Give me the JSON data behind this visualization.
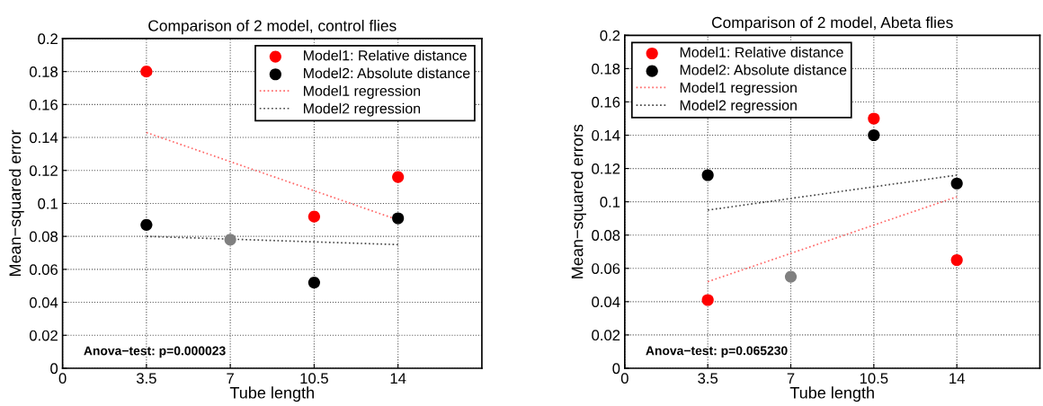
{
  "chart_data": [
    {
      "type": "scatter",
      "title": "Comparison of 2 model, control flies",
      "xlabel": "Tube length",
      "ylabel": "Mean−squared error",
      "xlim": [
        0,
        17.5
      ],
      "xticks": [
        0,
        3.5,
        7,
        10.5,
        14
      ],
      "ylim": [
        0,
        0.2
      ],
      "yticks": [
        0,
        0.02,
        0.04,
        0.06,
        0.08,
        0.1,
        0.12,
        0.14,
        0.16,
        0.18,
        0.2
      ],
      "grid": true,
      "legend": "top right",
      "marker": "circle",
      "annotations": [
        "Anova−test: p=0.000023"
      ],
      "series": [
        {
          "name": "Model1: Relative distance",
          "color": "#ff0000",
          "x": [
            3.5,
            10.5,
            14
          ],
          "values": [
            0.18,
            0.092,
            0.116
          ]
        },
        {
          "name": "Model2: Absolute distance",
          "color": "#000000",
          "x": [
            3.5,
            10.5,
            14
          ],
          "values": [
            0.087,
            0.052,
            0.091
          ]
        },
        {
          "name": "Model1 regression",
          "type": "line",
          "line_style": "dotted",
          "marker": "none",
          "color": "#ff6666",
          "x": [
            3.5,
            14
          ],
          "values": [
            0.143,
            0.09
          ]
        },
        {
          "name": "Model2 regression",
          "type": "line",
          "line_style": "dotted",
          "marker": "none",
          "color": "#444444",
          "x": [
            3.5,
            14
          ],
          "values": [
            0.08,
            0.075
          ]
        },
        {
          "color": "#808080",
          "x": [
            7
          ],
          "values": [
            0.078
          ]
        }
      ]
    },
    {
      "type": "scatter",
      "title": "Comparison of 2 model, Abeta flies",
      "xlabel": "Tube length",
      "ylabel": "Mean−squared errors",
      "xlim": [
        0,
        17.5
      ],
      "xticks": [
        0,
        3.5,
        7,
        10.5,
        14
      ],
      "ylim": [
        0,
        0.2
      ],
      "yticks": [
        0,
        0.02,
        0.04,
        0.06,
        0.08,
        0.1,
        0.12,
        0.14,
        0.16,
        0.18,
        0.2
      ],
      "grid": true,
      "legend": "top left",
      "marker": "circle",
      "annotations": [
        "Anova−test: p=0.065230"
      ],
      "series": [
        {
          "name": "Model1: Relative distance",
          "color": "#ff0000",
          "x": [
            3.5,
            10.5,
            14
          ],
          "values": [
            0.041,
            0.15,
            0.065
          ]
        },
        {
          "name": "Model2: Absolute distance",
          "color": "#000000",
          "x": [
            3.5,
            10.5,
            14
          ],
          "values": [
            0.116,
            0.14,
            0.111
          ]
        },
        {
          "name": "Model1 regression",
          "type": "line",
          "line_style": "dotted",
          "marker": "none",
          "color": "#ff6666",
          "x": [
            3.5,
            14
          ],
          "values": [
            0.052,
            0.103
          ]
        },
        {
          "name": "Model2 regression",
          "type": "line",
          "line_style": "dotted",
          "marker": "none",
          "color": "#444444",
          "x": [
            3.5,
            14
          ],
          "values": [
            0.095,
            0.116
          ]
        },
        {
          "color": "#808080",
          "x": [
            7
          ],
          "values": [
            0.055
          ]
        }
      ]
    }
  ]
}
